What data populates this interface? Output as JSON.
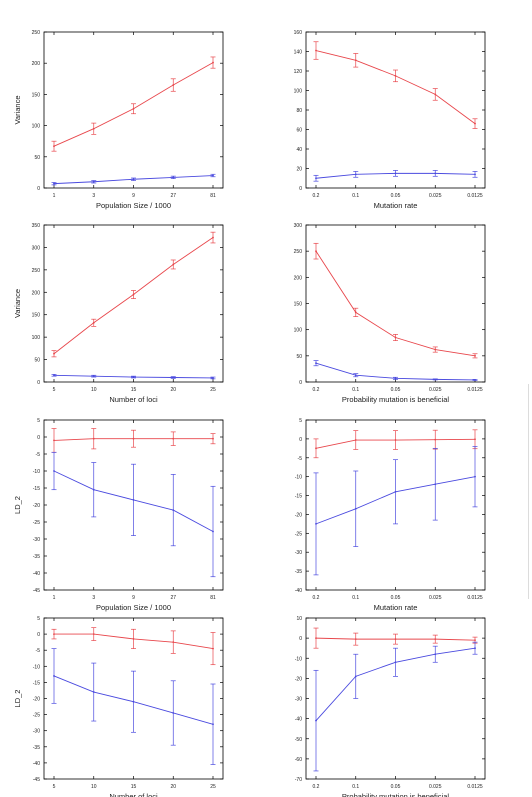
{
  "chart_data": [
    {
      "type": "line",
      "title": "",
      "xlabel": "Population Size / 1000",
      "ylabel": "Variance",
      "categories": [
        "1",
        "3",
        "9",
        "27",
        "81"
      ],
      "ylim": [
        0,
        250
      ],
      "yticks": [
        0,
        50,
        100,
        150,
        200,
        250
      ],
      "grid": false,
      "series": [
        {
          "color": "#e8474c",
          "values": [
            67,
            95,
            127,
            165,
            201
          ],
          "errors": [
            8,
            9,
            8,
            10,
            9
          ]
        },
        {
          "color": "#4a4adf",
          "values": [
            7,
            10,
            14,
            17,
            20
          ],
          "errors": [
            2,
            2,
            2,
            2,
            2
          ]
        }
      ]
    },
    {
      "type": "line",
      "title": "",
      "xlabel": "Mutation rate",
      "ylabel": "",
      "categories": [
        "0.2",
        "0.1",
        "0.05",
        "0.025",
        "0.0125"
      ],
      "ylim": [
        0,
        160
      ],
      "yticks": [
        0,
        20,
        40,
        60,
        80,
        100,
        120,
        140,
        160
      ],
      "grid": false,
      "series": [
        {
          "color": "#e8474c",
          "values": [
            141,
            131,
            115,
            96,
            66
          ],
          "errors": [
            9,
            7,
            6,
            6,
            5
          ]
        },
        {
          "color": "#4a4adf",
          "values": [
            10,
            14,
            15,
            15,
            14
          ],
          "errors": [
            3,
            3,
            3,
            3,
            3
          ]
        }
      ]
    },
    {
      "type": "line",
      "title": "",
      "xlabel": "Number of loci",
      "ylabel": "Variance",
      "categories": [
        "5",
        "10",
        "15",
        "20",
        "25"
      ],
      "ylim": [
        0,
        350
      ],
      "yticks": [
        0,
        50,
        100,
        150,
        200,
        250,
        300,
        350
      ],
      "grid": false,
      "series": [
        {
          "color": "#e8474c",
          "values": [
            63,
            132,
            195,
            262,
            322
          ],
          "errors": [
            7,
            8,
            9,
            10,
            12
          ]
        },
        {
          "color": "#4a4adf",
          "values": [
            15,
            13,
            11,
            10,
            9
          ],
          "errors": [
            2,
            2,
            2,
            2,
            2
          ]
        }
      ]
    },
    {
      "type": "line",
      "title": "",
      "xlabel": "Probability mutation is beneficial",
      "ylabel": "",
      "categories": [
        "0.2",
        "0.1",
        "0.05",
        "0.025",
        "0.0125"
      ],
      "ylim": [
        0,
        300
      ],
      "yticks": [
        0,
        50,
        100,
        150,
        200,
        250,
        300
      ],
      "grid": false,
      "series": [
        {
          "color": "#e8474c",
          "values": [
            250,
            133,
            85,
            62,
            50
          ],
          "errors": [
            15,
            8,
            6,
            5,
            4
          ]
        },
        {
          "color": "#4a4adf",
          "values": [
            36,
            13,
            7,
            5,
            4
          ],
          "errors": [
            5,
            3,
            2,
            1,
            1
          ]
        }
      ]
    },
    {
      "type": "line",
      "title": "",
      "xlabel": "Population Size / 1000",
      "ylabel": "LD_2",
      "categories": [
        "1",
        "3",
        "9",
        "27",
        "81"
      ],
      "ylim": [
        -45,
        5
      ],
      "yticks": [
        -45,
        -40,
        -35,
        -30,
        -25,
        -20,
        -15,
        -10,
        -5,
        0,
        5
      ],
      "grid": false,
      "series": [
        {
          "color": "#e8474c",
          "values": [
            -1,
            -0.5,
            -0.5,
            -0.5,
            -0.5
          ],
          "errors": [
            3.5,
            3,
            2.5,
            2,
            1.5
          ]
        },
        {
          "color": "#4a4adf",
          "values": [
            -10,
            -15.5,
            -18.5,
            -21.5,
            -27.8
          ],
          "errors": [
            5.5,
            8,
            10.5,
            10.5,
            13.3
          ]
        }
      ]
    },
    {
      "type": "line",
      "title": "",
      "xlabel": "Mutation rate",
      "ylabel": "",
      "categories": [
        "0.2",
        "0.1",
        "0.05",
        "0.025",
        "0.0125"
      ],
      "ylim": [
        -40,
        5
      ],
      "yticks": [
        -40,
        -35,
        -30,
        -25,
        -20,
        -15,
        -10,
        -5,
        0,
        5
      ],
      "grid": false,
      "series": [
        {
          "color": "#e8474c",
          "values": [
            -2.5,
            -0.3,
            -0.3,
            -0.2,
            -0.1
          ],
          "errors": [
            2.5,
            2.5,
            2.5,
            2.5,
            2.5
          ]
        },
        {
          "color": "#4a4adf",
          "values": [
            -22.5,
            -18.5,
            -14,
            -12,
            -10
          ],
          "errors": [
            13.5,
            10,
            8.5,
            9.5,
            8
          ]
        }
      ]
    },
    {
      "type": "line",
      "title": "",
      "xlabel": "Number of loci",
      "ylabel": "LD_2",
      "categories": [
        "5",
        "10",
        "15",
        "20",
        "25"
      ],
      "ylim": [
        -45,
        5
      ],
      "yticks": [
        -45,
        -40,
        -35,
        -30,
        -25,
        -20,
        -15,
        -10,
        -5,
        0,
        5
      ],
      "grid": false,
      "series": [
        {
          "color": "#e8474c",
          "values": [
            0,
            0,
            -1.5,
            -2.5,
            -4.5
          ],
          "errors": [
            1.5,
            2,
            3,
            3.5,
            5
          ]
        },
        {
          "color": "#4a4adf",
          "values": [
            -13,
            -18,
            -21,
            -24.5,
            -28
          ],
          "errors": [
            8.5,
            9,
            9.5,
            10,
            12.5
          ]
        }
      ]
    },
    {
      "type": "line",
      "title": "",
      "xlabel": "Probability mutation is beneficial",
      "ylabel": "",
      "categories": [
        "0.2",
        "0.1",
        "0.05",
        "0.025",
        "0.0125"
      ],
      "ylim": [
        -70,
        10
      ],
      "yticks": [
        -70,
        -60,
        -50,
        -40,
        -30,
        -20,
        -10,
        0,
        10
      ],
      "grid": false,
      "series": [
        {
          "color": "#e8474c",
          "values": [
            0,
            -0.5,
            -0.5,
            -0.5,
            -1
          ],
          "errors": [
            5,
            3,
            2.5,
            2,
            1.5
          ]
        },
        {
          "color": "#4a4adf",
          "values": [
            -41,
            -19,
            -12,
            -8,
            -5
          ],
          "errors": [
            25,
            11,
            7,
            4,
            3
          ]
        }
      ]
    }
  ]
}
